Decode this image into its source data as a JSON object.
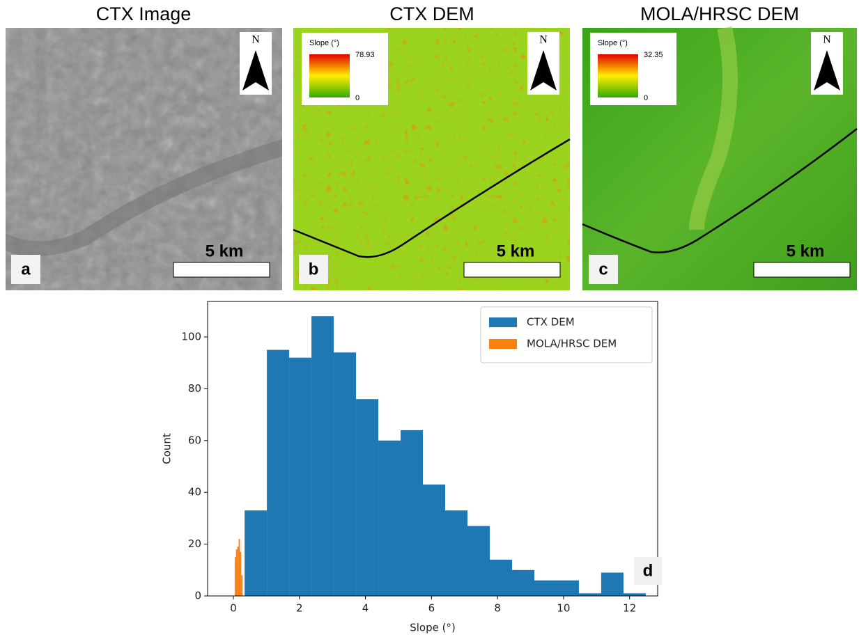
{
  "panels": [
    {
      "title": "CTX Image",
      "label": "a",
      "scale": "5 km",
      "north": "N"
    },
    {
      "title": "CTX DEM",
      "label": "b",
      "scale": "5 km",
      "north": "N",
      "legend_title": "Slope (°)",
      "legend_max": "78.93",
      "legend_min": "0"
    },
    {
      "title": "MOLA/HRSC DEM",
      "label": "c",
      "scale": "5 km",
      "north": "N",
      "legend_title": "Slope (°)",
      "legend_max": "32.35",
      "legend_min": "0"
    }
  ],
  "chart_data": {
    "type": "histogram",
    "xlabel": "Slope (°)",
    "ylabel": "Count",
    "panel_label": "d",
    "xlim": [
      -0.78,
      12.85
    ],
    "ylim": [
      0,
      113.7
    ],
    "xticks": [
      0,
      2,
      4,
      6,
      8,
      10,
      12
    ],
    "yticks": [
      0,
      20,
      40,
      60,
      80,
      100
    ],
    "legend": "upper right",
    "series": [
      {
        "name": "CTX DEM",
        "color": "#1f77b4",
        "bins": [
          0.34,
          1.015,
          1.69,
          2.365,
          3.04,
          3.715,
          4.39,
          5.065,
          5.74,
          6.415,
          7.09,
          7.765,
          8.44,
          9.115,
          9.79,
          10.465,
          11.14,
          11.815,
          12.49
        ],
        "values": [
          33,
          95,
          92,
          108,
          94,
          76,
          60,
          64,
          43,
          33,
          27,
          14,
          10,
          6,
          6,
          1,
          9,
          1
        ]
      },
      {
        "name": "MOLA/HRSC DEM",
        "color": "#ff7f0e",
        "bins": [
          0.04,
          0.08,
          0.12,
          0.16,
          0.2,
          0.24,
          0.28
        ],
        "values": [
          15,
          18,
          19,
          22,
          17,
          8
        ]
      }
    ]
  }
}
